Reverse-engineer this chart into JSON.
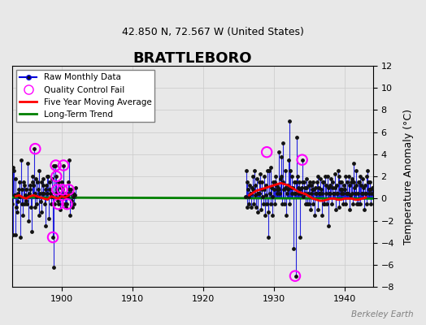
{
  "title": "BRATTLEBORO",
  "subtitle": "42.850 N, 72.567 W (United States)",
  "ylabel": "Temperature Anomaly (°C)",
  "credit": "Berkeley Earth",
  "ylim": [
    -8,
    12
  ],
  "yticks": [
    -8,
    -6,
    -4,
    -2,
    0,
    2,
    4,
    6,
    8,
    10,
    12
  ],
  "xlim": [
    1893,
    1944
  ],
  "xticks": [
    1900,
    1910,
    1920,
    1930,
    1940
  ],
  "bg_color": "#e8e8e8",
  "raw_data": {
    "years": [
      1893.0,
      1893.083,
      1893.167,
      1893.25,
      1893.333,
      1893.417,
      1893.5,
      1893.583,
      1893.667,
      1893.75,
      1893.833,
      1893.917,
      1894.0,
      1894.083,
      1894.167,
      1894.25,
      1894.333,
      1894.417,
      1894.5,
      1894.583,
      1894.667,
      1894.75,
      1894.833,
      1894.917,
      1895.0,
      1895.083,
      1895.167,
      1895.25,
      1895.333,
      1895.417,
      1895.5,
      1895.583,
      1895.667,
      1895.75,
      1895.833,
      1895.917,
      1896.0,
      1896.083,
      1896.167,
      1896.25,
      1896.333,
      1896.417,
      1896.5,
      1896.583,
      1896.667,
      1896.75,
      1896.833,
      1896.917,
      1897.0,
      1897.083,
      1897.167,
      1897.25,
      1897.333,
      1897.417,
      1897.5,
      1897.583,
      1897.667,
      1897.75,
      1897.833,
      1897.917,
      1898.0,
      1898.083,
      1898.167,
      1898.25,
      1898.333,
      1898.417,
      1898.5,
      1898.583,
      1898.667,
      1898.75,
      1898.833,
      1898.917,
      1899.0,
      1899.083,
      1899.167,
      1899.25,
      1899.333,
      1899.417,
      1899.5,
      1899.583,
      1899.667,
      1899.75,
      1899.833,
      1899.917,
      1900.0,
      1900.083,
      1900.167,
      1900.25,
      1900.333,
      1900.417,
      1900.5,
      1900.583,
      1900.667,
      1900.75,
      1900.833,
      1900.917,
      1901.0,
      1901.083,
      1901.167,
      1901.25,
      1901.333,
      1901.417,
      1901.5,
      1901.583,
      1901.667,
      1901.75,
      1901.833,
      1901.917,
      1926.0,
      1926.083,
      1926.167,
      1926.25,
      1926.333,
      1926.417,
      1926.5,
      1926.583,
      1926.667,
      1926.75,
      1926.833,
      1926.917,
      1927.0,
      1927.083,
      1927.167,
      1927.25,
      1927.333,
      1927.417,
      1927.5,
      1927.583,
      1927.667,
      1927.75,
      1927.833,
      1927.917,
      1928.0,
      1928.083,
      1928.167,
      1928.25,
      1928.333,
      1928.417,
      1928.5,
      1928.583,
      1928.667,
      1928.75,
      1928.833,
      1928.917,
      1929.0,
      1929.083,
      1929.167,
      1929.25,
      1929.333,
      1929.417,
      1929.5,
      1929.583,
      1929.667,
      1929.75,
      1929.833,
      1929.917,
      1930.0,
      1930.083,
      1930.167,
      1930.25,
      1930.333,
      1930.417,
      1930.5,
      1930.583,
      1930.667,
      1930.75,
      1930.833,
      1930.917,
      1931.0,
      1931.083,
      1931.167,
      1931.25,
      1931.333,
      1931.417,
      1931.5,
      1931.583,
      1931.667,
      1931.75,
      1931.833,
      1931.917,
      1932.0,
      1932.083,
      1932.167,
      1932.25,
      1932.333,
      1932.417,
      1932.5,
      1932.583,
      1932.667,
      1932.75,
      1932.833,
      1932.917,
      1933.0,
      1933.083,
      1933.167,
      1933.25,
      1933.333,
      1933.417,
      1933.5,
      1933.583,
      1933.667,
      1933.75,
      1933.833,
      1933.917,
      1934.0,
      1934.083,
      1934.167,
      1934.25,
      1934.333,
      1934.417,
      1934.5,
      1934.583,
      1934.667,
      1934.75,
      1934.833,
      1934.917,
      1935.0,
      1935.083,
      1935.167,
      1935.25,
      1935.333,
      1935.417,
      1935.5,
      1935.583,
      1935.667,
      1935.75,
      1935.833,
      1935.917,
      1936.0,
      1936.083,
      1936.167,
      1936.25,
      1936.333,
      1936.417,
      1936.5,
      1936.583,
      1936.667,
      1936.75,
      1936.833,
      1936.917,
      1937.0,
      1937.083,
      1937.167,
      1937.25,
      1937.333,
      1937.417,
      1937.5,
      1937.583,
      1937.667,
      1937.75,
      1937.833,
      1937.917,
      1938.0,
      1938.083,
      1938.167,
      1938.25,
      1938.333,
      1938.417,
      1938.5,
      1938.583,
      1938.667,
      1938.75,
      1938.833,
      1938.917,
      1939.0,
      1939.083,
      1939.167,
      1939.25,
      1939.333,
      1939.417,
      1939.5,
      1939.583,
      1939.667,
      1939.75,
      1939.833,
      1939.917,
      1940.0,
      1940.083,
      1940.167,
      1940.25,
      1940.333,
      1940.417,
      1940.5,
      1940.583,
      1940.667,
      1940.75,
      1940.833,
      1940.917,
      1941.0,
      1941.083,
      1941.167,
      1941.25,
      1941.333,
      1941.417,
      1941.5,
      1941.583,
      1941.667,
      1941.75,
      1941.833,
      1941.917,
      1942.0,
      1942.083,
      1942.167,
      1942.25,
      1942.333,
      1942.417,
      1942.5,
      1942.583,
      1942.667,
      1942.75,
      1942.833,
      1942.917,
      1943.0,
      1943.083,
      1943.167,
      1943.25,
      1943.333,
      1943.417,
      1943.5,
      1943.583,
      1943.667,
      1943.75,
      1943.833,
      1943.917
    ],
    "values": [
      -0.5,
      2.8,
      -3.3,
      2.5,
      0.3,
      -3.3,
      1.8,
      -0.8,
      -1.2,
      0.5,
      -0.3,
      0.8,
      1.5,
      0.2,
      -3.5,
      3.5,
      0.8,
      -0.5,
      -1.5,
      1.5,
      1.2,
      -0.5,
      0.3,
      -0.2,
      0.8,
      -0.5,
      3.2,
      0.3,
      -2.0,
      0.5,
      1.2,
      0.8,
      -0.8,
      -3.0,
      1.5,
      2.0,
      1.2,
      4.5,
      0.5,
      -0.8,
      1.8,
      0.2,
      -0.5,
      1.5,
      0.8,
      -1.5,
      2.5,
      0.5,
      -0.3,
      1.5,
      -1.2,
      0.5,
      1.8,
      1.2,
      0.5,
      -0.5,
      0.8,
      -2.5,
      1.2,
      2.0,
      0.5,
      2.0,
      -1.8,
      0.8,
      1.5,
      0.5,
      -0.5,
      1.8,
      0.2,
      -3.5,
      -6.2,
      3.0,
      -0.5,
      3.0,
      0.5,
      2.0,
      0.8,
      -0.2,
      -0.5,
      1.5,
      0.5,
      -1.0,
      0.2,
      1.0,
      1.5,
      0.8,
      -0.5,
      3.0,
      0.5,
      0.2,
      -0.5,
      -0.8,
      0.5,
      -0.5,
      0.2,
      1.5,
      0.8,
      3.5,
      -1.5,
      0.8,
      0.5,
      -0.2,
      -0.8,
      0.5,
      0.2,
      -0.5,
      0.3,
      1.0,
      0.2,
      2.5,
      -0.8,
      1.5,
      0.8,
      0.2,
      -0.5,
      1.2,
      0.5,
      -0.8,
      0.5,
      1.0,
      0.8,
      2.0,
      -0.5,
      2.5,
      1.2,
      0.3,
      -0.8,
      1.8,
      0.5,
      -1.2,
      0.5,
      1.5,
      0.5,
      2.2,
      -1.0,
      1.5,
      0.8,
      0.2,
      -0.5,
      2.0,
      0.8,
      -1.5,
      0.3,
      1.2,
      -0.5,
      2.5,
      -1.2,
      -3.5,
      2.5,
      0.5,
      -0.5,
      2.8,
      1.0,
      -1.5,
      0.2,
      1.5,
      0.8,
      1.5,
      -0.5,
      2.0,
      1.2,
      0.8,
      0.5,
      1.0,
      0.8,
      4.2,
      0.5,
      1.8,
      2.0,
      3.8,
      -0.5,
      5.0,
      1.5,
      0.8,
      -0.5,
      2.5,
      1.0,
      -1.5,
      0.5,
      1.2,
      0.8,
      3.5,
      -0.5,
      7.0,
      2.5,
      1.0,
      0.5,
      2.0,
      1.0,
      -4.5,
      0.5,
      1.5,
      0.5,
      -7.0,
      1.5,
      5.5,
      2.0,
      1.0,
      0.5,
      1.5,
      0.8,
      -3.5,
      0.5,
      1.0,
      1.5,
      3.5,
      0.2,
      1.5,
      1.0,
      0.5,
      -0.5,
      1.8,
      1.0,
      -0.5,
      0.5,
      1.2,
      -0.5,
      1.5,
      -1.0,
      0.5,
      1.2,
      0.8,
      -0.5,
      1.5,
      0.8,
      -1.5,
      0.5,
      1.0,
      0.5,
      1.5,
      -1.0,
      2.0,
      1.0,
      0.5,
      0.5,
      1.8,
      0.8,
      -1.5,
      0.5,
      1.5,
      -0.5,
      1.5,
      -0.5,
      2.0,
      1.2,
      0.5,
      -0.5,
      2.0,
      1.0,
      -2.5,
      0.5,
      1.2,
      0.5,
      1.8,
      -0.5,
      1.5,
      1.0,
      0.5,
      0.5,
      2.2,
      1.0,
      -1.0,
      0.5,
      1.2,
      0.5,
      2.5,
      -0.8,
      2.0,
      1.5,
      0.8,
      0.5,
      1.5,
      0.8,
      -0.5,
      0.5,
      1.2,
      0.8,
      2.0,
      -0.5,
      0.5,
      1.5,
      0.5,
      0.5,
      2.0,
      1.2,
      -1.0,
      0.3,
      1.5,
      0.5,
      1.8,
      -0.5,
      3.2,
      1.5,
      1.0,
      0.5,
      2.5,
      1.2,
      -0.5,
      0.5,
      1.5,
      -0.5,
      1.5,
      -0.5,
      2.0,
      1.2,
      0.5,
      0.5,
      1.8,
      1.0,
      -1.0,
      0.5,
      1.2,
      0.5,
      2.0,
      -0.5,
      2.5,
      1.5,
      0.8,
      0.5,
      1.5,
      0.8,
      -0.5,
      0.5,
      1.0
    ]
  },
  "qc_fail_years": [
    1896.25,
    1898.75,
    1899.167,
    1899.25,
    1899.333,
    1899.5,
    1900.083,
    1900.25,
    1900.75,
    1901.0,
    1929.0,
    1933.0,
    1934.0
  ],
  "qc_fail_values": [
    4.5,
    -3.5,
    3.0,
    2.0,
    0.8,
    -0.5,
    0.8,
    3.0,
    -0.5,
    0.8,
    4.2,
    -7.0,
    3.5
  ],
  "moving_avg_years_1": [
    1893.5,
    1894.0,
    1894.5,
    1895.0,
    1895.5,
    1896.0,
    1896.5,
    1897.0,
    1897.5,
    1898.0,
    1898.5,
    1899.0,
    1899.5,
    1900.0,
    1900.5,
    1901.0
  ],
  "moving_avg_values_1": [
    0.2,
    0.3,
    0.1,
    0.0,
    0.2,
    0.3,
    0.2,
    0.1,
    0.0,
    -0.1,
    0.2,
    0.1,
    0.0,
    0.2,
    0.1,
    0.3
  ],
  "moving_avg_years_2": [
    1926.5,
    1927.0,
    1927.5,
    1928.0,
    1928.5,
    1929.0,
    1929.5,
    1930.0,
    1930.5,
    1931.0,
    1931.5,
    1932.0,
    1932.5,
    1933.0,
    1933.5,
    1934.0,
    1934.5,
    1935.0,
    1935.5,
    1936.0,
    1936.5,
    1937.0,
    1937.5,
    1938.0,
    1938.5,
    1939.0,
    1939.5,
    1940.0,
    1940.5,
    1941.0,
    1941.5,
    1942.0,
    1942.5,
    1943.0
  ],
  "moving_avg_values_2": [
    0.3,
    0.5,
    0.7,
    0.8,
    0.9,
    1.0,
    1.1,
    1.2,
    1.3,
    1.4,
    1.3,
    1.2,
    1.0,
    0.8,
    0.6,
    0.5,
    0.4,
    0.2,
    0.0,
    -0.1,
    -0.2,
    -0.2,
    -0.1,
    0.0,
    0.0,
    -0.1,
    -0.1,
    0.0,
    0.0,
    0.0,
    -0.1,
    -0.1,
    0.0,
    0.1
  ],
  "trend_x": [
    1893,
    1944
  ],
  "trend_y": [
    0.1,
    0.0
  ],
  "line_color": "#0000dd",
  "dot_color": "#111111",
  "qc_color": "magenta",
  "moving_avg_color": "red",
  "trend_color": "green",
  "grid_color": "#cccccc"
}
